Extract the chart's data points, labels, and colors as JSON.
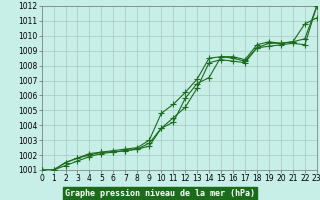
{
  "title": "Graphe pression niveau de la mer (hPa)",
  "ylim": [
    1001,
    1012
  ],
  "xlim": [
    0,
    23
  ],
  "yticks": [
    1001,
    1002,
    1003,
    1004,
    1005,
    1006,
    1007,
    1008,
    1009,
    1010,
    1011,
    1012
  ],
  "xticks": [
    0,
    1,
    2,
    3,
    4,
    5,
    6,
    7,
    8,
    9,
    10,
    11,
    12,
    13,
    14,
    15,
    16,
    17,
    18,
    19,
    20,
    21,
    22,
    23
  ],
  "line1_x": [
    0,
    1,
    2,
    3,
    4,
    5,
    6,
    7,
    8,
    9,
    10,
    11,
    12,
    13,
    14,
    15,
    16,
    17,
    18,
    19,
    20,
    21,
    22,
    23
  ],
  "line1_y": [
    1001.0,
    1001.0,
    1001.3,
    1001.6,
    1001.9,
    1002.1,
    1002.2,
    1002.3,
    1002.4,
    1002.6,
    1003.8,
    1004.5,
    1005.2,
    1006.5,
    1008.2,
    1008.4,
    1008.3,
    1008.2,
    1009.2,
    1009.3,
    1009.4,
    1009.5,
    1009.4,
    1012.0
  ],
  "line2_x": [
    0,
    1,
    2,
    3,
    4,
    5,
    6,
    7,
    8,
    9,
    10,
    11,
    12,
    13,
    14,
    15,
    16,
    17,
    18,
    19,
    20,
    21,
    22,
    23
  ],
  "line2_y": [
    1001.0,
    1001.0,
    1001.5,
    1001.8,
    1002.1,
    1002.2,
    1002.3,
    1002.4,
    1002.5,
    1003.0,
    1004.8,
    1005.4,
    1006.2,
    1007.1,
    1008.5,
    1008.6,
    1008.5,
    1008.3,
    1009.2,
    1009.5,
    1009.5,
    1009.6,
    1009.8,
    1012.0
  ],
  "line3_x": [
    0,
    1,
    2,
    3,
    4,
    5,
    6,
    7,
    8,
    9,
    10,
    11,
    12,
    13,
    14,
    15,
    16,
    17,
    18,
    19,
    20,
    21,
    22,
    23
  ],
  "line3_y": [
    1001.0,
    1001.0,
    1001.5,
    1001.8,
    1002.0,
    1002.2,
    1002.2,
    1002.3,
    1002.4,
    1002.8,
    1003.8,
    1004.2,
    1005.8,
    1006.8,
    1007.2,
    1008.6,
    1008.6,
    1008.4,
    1009.4,
    1009.6,
    1009.5,
    1009.6,
    1010.8,
    1011.2
  ],
  "line_color": "#1a6b1a",
  "bg_color": "#c8eee8",
  "grid_color": "#a8c8c0",
  "title_bg": "#1a6b1a",
  "title_fg": "#ffffff",
  "marker": "+",
  "markersize": 4,
  "linewidth": 0.8,
  "tick_fontsize": 5.5,
  "label_fontsize": 6.0
}
